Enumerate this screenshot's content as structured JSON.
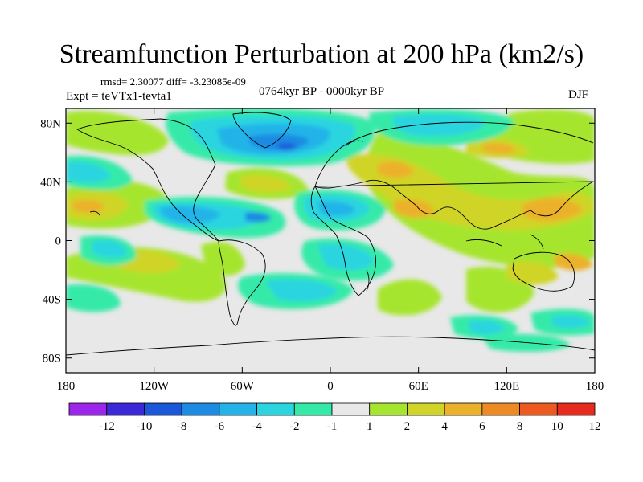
{
  "title": "Streamfunction Perturbation at 200 hPa (km2/s)",
  "stats_line": "rmsd= 2.30077 diff= -3.23085e-09",
  "left_label": "Expt = teVTx1-tevta1",
  "center_label": "0764kyr BP - 0000kyr BP",
  "right_label": "DJF",
  "map": {
    "projection": "cylindrical equidistant",
    "lon_range": [
      -180,
      180
    ],
    "lat_range": [
      -90,
      90
    ],
    "lat_tick_labels": [
      "80N",
      "40N",
      "0",
      "40S",
      "80S"
    ],
    "lon_tick_labels": [
      "180",
      "120W",
      "60W",
      "0",
      "60E",
      "120E",
      "180"
    ]
  },
  "colorbar": {
    "labels": [
      "-12",
      "-10",
      "-8",
      "-6",
      "-4",
      "-2",
      "-1",
      "1",
      "2",
      "4",
      "6",
      "8",
      "10",
      "12"
    ],
    "colors": [
      "#9b25e8",
      "#3b28d8",
      "#1a58d9",
      "#1d8ae3",
      "#23b3e8",
      "#2bd5e0",
      "#34eaa8",
      "#e8e8e8",
      "#a6e52f",
      "#d0d428",
      "#ecb12a",
      "#ee8a24",
      "#ec5a20",
      "#e62a1c"
    ]
  }
}
